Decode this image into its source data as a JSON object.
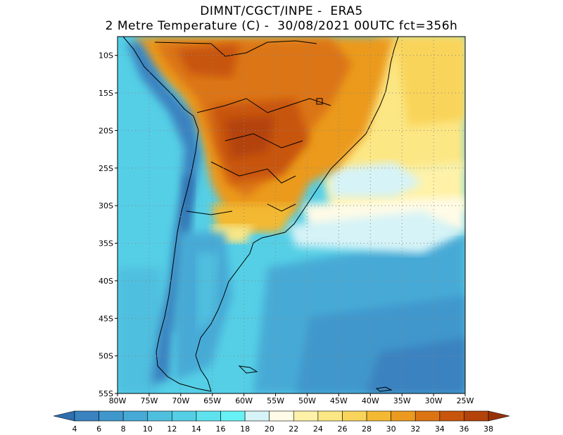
{
  "header": {
    "title_line1": "DIMNT/CGCT/INPE -  ERA5",
    "title_line2": "2 Metre Temperature (C) -  30/08/2021 00UTC fct=356h"
  },
  "map": {
    "lat_labels": [
      "10S",
      "15S",
      "20S",
      "25S",
      "30S",
      "35S",
      "40S",
      "45S",
      "50S",
      "55S"
    ],
    "lon_labels": [
      "80W",
      "75W",
      "70W",
      "65W",
      "60W",
      "55W",
      "50W",
      "45W",
      "40W",
      "35W",
      "30W",
      "25W"
    ]
  },
  "colorbar": {
    "labels": [
      "4",
      "6",
      "8",
      "10",
      "12",
      "14",
      "16",
      "18",
      "20",
      "22",
      "24",
      "26",
      "28",
      "30",
      "32",
      "34",
      "36",
      "38"
    ],
    "colors": [
      "#2e6fb0",
      "#3a82c0",
      "#3f97cc",
      "#47aad6",
      "#4fbfdf",
      "#55cfe6",
      "#5ee3ee",
      "#66f2f4",
      "#d6f3f7",
      "#fffbe6",
      "#fff2a8",
      "#fce785",
      "#f9d45a",
      "#f3b933",
      "#eb9a1f",
      "#dc7414",
      "#c8550d",
      "#b3430a",
      "#963207"
    ]
  }
}
